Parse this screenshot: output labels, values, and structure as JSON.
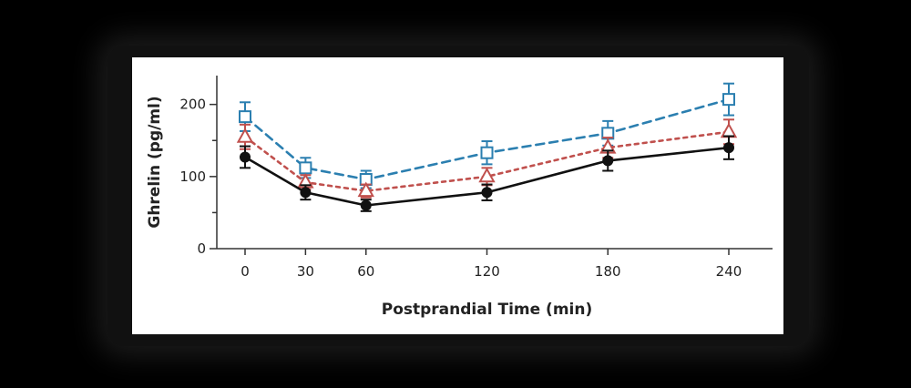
{
  "chart_data": {
    "type": "line",
    "title": "",
    "xlabel": "Postprandial Time (min)",
    "ylabel": "Ghrelin (pg/ml)",
    "xlim": [
      -20,
      270
    ],
    "ylim": [
      0,
      240
    ],
    "x_ticks": [
      0,
      30,
      60,
      120,
      180,
      240
    ],
    "y_ticks": [
      0,
      100,
      200
    ],
    "grid": false,
    "legend": "none",
    "x": [
      0,
      30,
      60,
      120,
      180,
      240
    ],
    "series": [
      {
        "marker": "open-square",
        "line_style": "dashed",
        "color": "#2b7fb0",
        "values": [
          183,
          112,
          96,
          133,
          160,
          207
        ],
        "error": [
          20,
          14,
          12,
          16,
          17,
          22
        ]
      },
      {
        "marker": "open-triangle",
        "line_style": "dotted",
        "color": "#c0504d",
        "values": [
          155,
          92,
          80,
          100,
          140,
          162
        ],
        "error": [
          17,
          10,
          9,
          12,
          14,
          17
        ]
      },
      {
        "marker": "filled-circle",
        "line_style": "solid",
        "color": "#111111",
        "values": [
          127,
          78,
          60,
          78,
          122,
          140
        ],
        "error": [
          15,
          10,
          8,
          11,
          14,
          16
        ]
      }
    ]
  }
}
